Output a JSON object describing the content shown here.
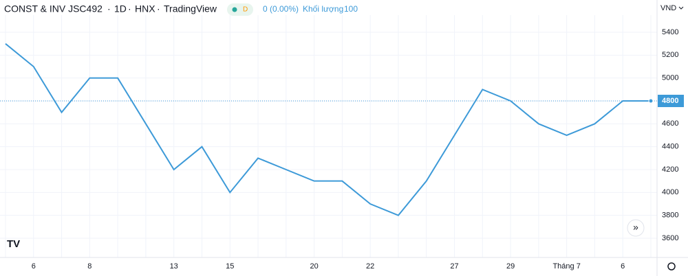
{
  "chart_data": {
    "type": "line",
    "header": {
      "title": "CONST & INV JSC492",
      "interval": "1D",
      "exchange": "HNX",
      "source": "TradingView",
      "badge": "D",
      "change": "0 (0.00%)",
      "volume_label": "Khối lượng",
      "volume": 100
    },
    "y_unit": "VND",
    "categories": [
      null,
      "6",
      null,
      "8",
      null,
      null,
      "13",
      null,
      "15",
      null,
      null,
      "20",
      null,
      "22",
      null,
      null,
      "27",
      null,
      "29",
      null,
      "Tháng 7",
      null,
      "6",
      null
    ],
    "series": [
      {
        "name": "CONST & INV JSC492",
        "color": "#3d9ad8",
        "values": [
          5300,
          5100,
          4700,
          5000,
          5000,
          4600,
          4200,
          4400,
          4000,
          4300,
          4200,
          4100,
          4100,
          3900,
          3800,
          4100,
          4500,
          4900,
          4800,
          4600,
          4500,
          4600,
          4800,
          4800
        ]
      }
    ],
    "last_price": 4800,
    "ylim": [
      3432,
      5682
    ],
    "yticks": [
      3600,
      3800,
      4000,
      4200,
      4400,
      4600,
      4800,
      5000,
      5200,
      5400
    ],
    "grid": true
  }
}
